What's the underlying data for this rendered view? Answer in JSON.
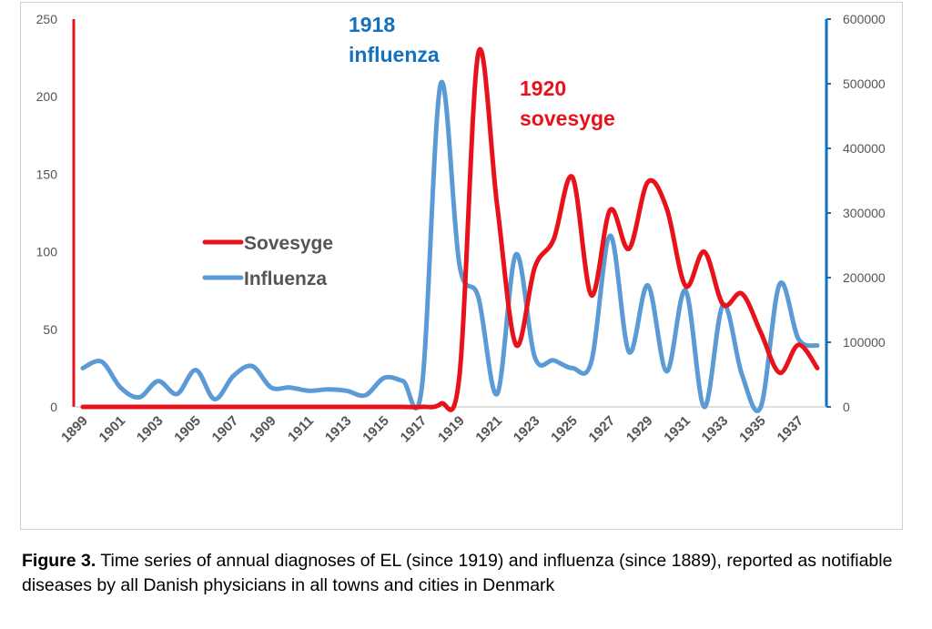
{
  "chart_data": {
    "type": "line",
    "title": "",
    "xlabel": "",
    "ylabel": "",
    "y2label": "",
    "x": [
      1899,
      1900,
      1901,
      1902,
      1903,
      1904,
      1905,
      1906,
      1907,
      1908,
      1909,
      1910,
      1911,
      1912,
      1913,
      1914,
      1915,
      1916,
      1917,
      1918,
      1919,
      1920,
      1921,
      1922,
      1923,
      1924,
      1925,
      1926,
      1927,
      1928,
      1929,
      1930,
      1931,
      1932,
      1933,
      1934,
      1935,
      1936,
      1937,
      1938
    ],
    "x_tick_labels": [
      "1899",
      "1901",
      "1903",
      "1905",
      "1907",
      "1909",
      "1911",
      "1913",
      "1915",
      "1917",
      "1919",
      "1921",
      "1923",
      "1925",
      "1927",
      "1929",
      "1931",
      "1933",
      "1935",
      "1937"
    ],
    "ylim": [
      0,
      250
    ],
    "y_ticks": [
      "0",
      "50",
      "100",
      "150",
      "200",
      "250"
    ],
    "y2lim": [
      0,
      600000
    ],
    "y2_ticks": [
      "0",
      "100000",
      "200000",
      "300000",
      "400000",
      "500000",
      "600000"
    ],
    "series": [
      {
        "name": "Sovesyge",
        "axis": "left",
        "color": "#e8121b",
        "values": [
          0,
          0,
          0,
          0,
          0,
          0,
          0,
          0,
          0,
          0,
          0,
          0,
          0,
          0,
          0,
          0,
          0,
          0,
          0,
          2,
          20,
          228,
          130,
          40,
          90,
          108,
          148,
          72,
          127,
          102,
          145,
          128,
          78,
          100,
          66,
          73,
          48,
          22,
          40,
          25
        ]
      },
      {
        "name": "Influenza",
        "axis": "right",
        "color": "#5b9bd5",
        "values": [
          60000,
          70000,
          30000,
          15000,
          40000,
          20000,
          57000,
          12000,
          48000,
          63000,
          30000,
          30000,
          25000,
          27000,
          25000,
          18000,
          45000,
          40000,
          30000,
          500000,
          220000,
          170000,
          20000,
          236000,
          77000,
          72000,
          60000,
          70000,
          265000,
          85000,
          188000,
          55000,
          180000,
          0,
          158000,
          50000,
          0,
          190000,
          105000,
          95000
        ]
      }
    ],
    "legend": {
      "position": "center-left",
      "items": [
        {
          "label": "Sovesyge",
          "color": "#e8121b"
        },
        {
          "label": "Influenza",
          "color": "#5b9bd5"
        }
      ]
    },
    "annotations": [
      {
        "lines": [
          "1918",
          "influenza"
        ],
        "color": "#1570be",
        "x": 1917,
        "y2": 560000
      },
      {
        "lines": [
          "1920",
          "sovesyge"
        ],
        "color": "#e8121b",
        "x": 1922,
        "y": 200
      }
    ],
    "grid": false
  },
  "caption": {
    "label": "Figure 3.",
    "text": "Time series of annual diagnoses of EL (since 1919) and influenza (since 1889), reported as notifiable diseases by all Danish physicians in all towns and cities in Denmark"
  }
}
